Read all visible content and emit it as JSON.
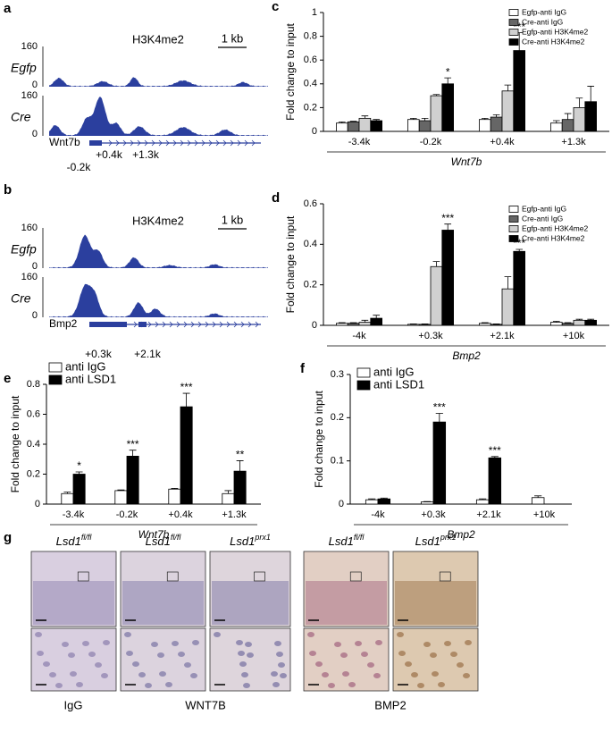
{
  "panels": {
    "a": {
      "label": "a",
      "mark": "H3K4me2",
      "scale": "1 kb",
      "tracks": [
        {
          "name": "Egfp",
          "ymax": 160,
          "ymin": 0
        },
        {
          "name": "Cre",
          "ymax": 160,
          "ymin": 0
        }
      ],
      "gene": "Wnt7b",
      "sites": [
        "+0.4k",
        "+1.3k",
        "-0.2k"
      ]
    },
    "b": {
      "label": "b",
      "mark": "H3K4me2",
      "scale": "1 kb",
      "tracks": [
        {
          "name": "Egfp",
          "ymax": 160,
          "ymin": 0
        },
        {
          "name": "Cre",
          "ymax": 160,
          "ymin": 0
        }
      ],
      "gene": "Bmp2",
      "sites": [
        "+0.3k",
        "+2.1k"
      ]
    },
    "g": {
      "label": "g",
      "columns": [
        {
          "gene": "Lsd1",
          "genotype": "fl/fl"
        },
        {
          "gene": "Lsd1",
          "genotype": "fl/fl"
        },
        {
          "gene": "Lsd1",
          "genotype": "prx1"
        },
        {
          "gene": "Lsd1",
          "genotype": "fl/fl"
        },
        {
          "gene": "Lsd1",
          "genotype": "prx1"
        }
      ],
      "stains": [
        "IgG",
        "WNT7B",
        "BMP2"
      ]
    }
  },
  "chart_data": [
    {
      "type": "bar",
      "panel_label": "c",
      "y_label": "Fold change to input",
      "x_label": "Wnt7b",
      "categories": [
        "-3.4k",
        "-0.2k",
        "+0.4k",
        "+1.3k"
      ],
      "series": [
        {
          "name": "Egfp-anti IgG",
          "color": "#ffffff",
          "values": [
            0.07,
            0.1,
            0.1,
            0.07
          ],
          "errors": [
            0.01,
            0.01,
            0.01,
            0.02
          ]
        },
        {
          "name": "Cre-anti IgG",
          "color": "#666666",
          "values": [
            0.08,
            0.09,
            0.12,
            0.1
          ],
          "errors": [
            0.005,
            0.02,
            0.02,
            0.05
          ]
        },
        {
          "name": "Egfp-anti H3K4me2",
          "color": "#d0d0d0",
          "values": [
            0.11,
            0.3,
            0.34,
            0.2
          ],
          "errors": [
            0.02,
            0.01,
            0.05,
            0.08
          ]
        },
        {
          "name": "Cre-anti H3K4me2",
          "color": "#000000",
          "values": [
            0.09,
            0.4,
            0.68,
            0.25
          ],
          "errors": [
            0.01,
            0.05,
            0.15,
            0.13
          ]
        }
      ],
      "stars": [
        null,
        "*",
        "***",
        null
      ],
      "ylim": [
        0,
        1
      ],
      "yticks": [
        0,
        0.2,
        0.4,
        0.6,
        0.8,
        1
      ],
      "legend": "upper right"
    },
    {
      "type": "bar",
      "panel_label": "d",
      "y_label": "Fold change to input",
      "x_label": "Bmp2",
      "categories": [
        "-4k",
        "+0.3k",
        "+2.1k",
        "+10k"
      ],
      "series": [
        {
          "name": "Egfp-anti IgG",
          "color": "#ffffff",
          "values": [
            0.01,
            0.005,
            0.01,
            0.015
          ],
          "errors": [
            0.003,
            0.002,
            0.003,
            0.005
          ]
        },
        {
          "name": "Cre-anti IgG",
          "color": "#666666",
          "values": [
            0.01,
            0.005,
            0.005,
            0.01
          ],
          "errors": [
            0.003,
            0.002,
            0.002,
            0.003
          ]
        },
        {
          "name": "Egfp-anti H3K4me2",
          "color": "#d0d0d0",
          "values": [
            0.015,
            0.29,
            0.18,
            0.025
          ],
          "errors": [
            0.01,
            0.025,
            0.06,
            0.005
          ]
        },
        {
          "name": "Cre-anti H3K4me2",
          "color": "#000000",
          "values": [
            0.035,
            0.47,
            0.365,
            0.025
          ],
          "errors": [
            0.015,
            0.03,
            0.01,
            0.005
          ]
        }
      ],
      "stars": [
        null,
        "***",
        "***",
        null
      ],
      "ylim": [
        0,
        0.6
      ],
      "yticks": [
        0,
        0.2,
        0.4,
        0.6
      ],
      "legend": "upper right"
    },
    {
      "type": "bar",
      "panel_label": "e",
      "y_label": "Fold change to input",
      "x_label": "Wnt7b",
      "categories": [
        "-3.4k",
        "-0.2k",
        "+0.4k",
        "+1.3k"
      ],
      "series": [
        {
          "name": "anti IgG",
          "color": "#ffffff",
          "values": [
            0.07,
            0.09,
            0.1,
            0.07
          ],
          "errors": [
            0.01,
            0.005,
            0.005,
            0.02
          ]
        },
        {
          "name": "anti LSD1",
          "color": "#000000",
          "values": [
            0.2,
            0.32,
            0.65,
            0.22
          ],
          "errors": [
            0.015,
            0.04,
            0.09,
            0.07
          ]
        }
      ],
      "stars": [
        "*",
        "***",
        "***",
        "**"
      ],
      "ylim": [
        0,
        0.8
      ],
      "yticks": [
        0,
        0.2,
        0.4,
        0.6,
        0.8
      ],
      "legend": "upper left"
    },
    {
      "type": "bar",
      "panel_label": "f",
      "y_label": "Fold change to input",
      "x_label": "Bmp2",
      "categories": [
        "-4k",
        "+0.3k",
        "+2.1k",
        "+10k"
      ],
      "series": [
        {
          "name": "anti IgG",
          "color": "#ffffff",
          "values": [
            0.01,
            0.005,
            0.01,
            0.015
          ],
          "errors": [
            0.002,
            0.001,
            0.002,
            0.004
          ]
        },
        {
          "name": "anti LSD1",
          "color": "#000000",
          "values": [
            0.012,
            0.19,
            0.107,
            null
          ],
          "errors": [
            0.002,
            0.02,
            0.003,
            null
          ]
        }
      ],
      "stars": [
        null,
        "***",
        "***",
        null
      ],
      "ylim": [
        0,
        0.3
      ],
      "yticks": [
        0,
        0.1,
        0.2,
        0.3
      ],
      "legend": "upper left"
    }
  ]
}
